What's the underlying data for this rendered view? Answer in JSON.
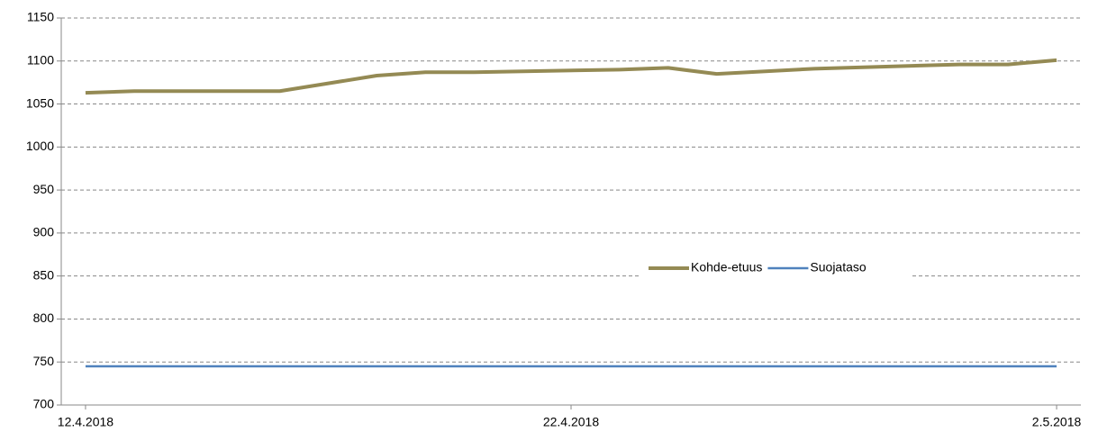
{
  "chart_data": {
    "type": "line",
    "x": [
      "12.4.2018",
      "13.4.2018",
      "16.4.2018",
      "17.4.2018",
      "18.4.2018",
      "19.4.2018",
      "20.4.2018",
      "23.4.2018",
      "24.4.2018",
      "25.4.2018",
      "26.4.2018",
      "27.4.2018",
      "30.4.2018",
      "1.5.2018",
      "2.5.2018"
    ],
    "series": [
      {
        "name": "Kohde-etuus",
        "color": "#948a54",
        "values": [
          1063,
          1065,
          1065,
          1074,
          1083,
          1087,
          1087,
          1090,
          1092,
          1085,
          1088,
          1091,
          1096,
          1096,
          1101
        ]
      },
      {
        "name": "Suojataso",
        "color": "#4f81bd",
        "values": [
          745,
          745,
          745,
          745,
          745,
          745,
          745,
          745,
          745,
          745,
          745,
          745,
          745,
          745,
          745
        ]
      }
    ],
    "xticks": [
      "12.4.2018",
      "22.4.2018",
      "2.5.2018"
    ],
    "ylim": [
      700,
      1150
    ],
    "yticks": [
      700,
      750,
      800,
      850,
      900,
      950,
      1000,
      1050,
      1100,
      1150
    ],
    "grid": true,
    "legend": "center"
  }
}
